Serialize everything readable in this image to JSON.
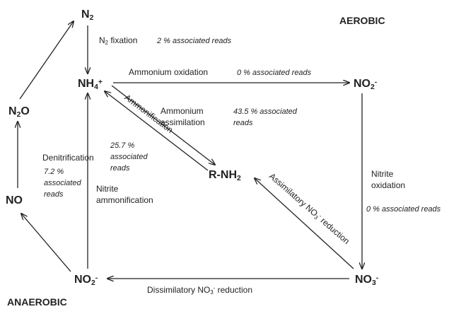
{
  "zones": {
    "aerobic": "AEROBIC",
    "anaerobic": "ANAEROBIC"
  },
  "nodes": [
    {
      "parts": [
        "N",
        {
          "text": "2",
          "pos": "sub"
        }
      ]
    },
    {
      "parts": [
        "NH",
        {
          "text": "4",
          "pos": "sub"
        },
        {
          "text": "+",
          "pos": "sup"
        }
      ]
    },
    {
      "parts": [
        "NO",
        {
          "text": "2",
          "pos": "sub"
        },
        {
          "text": "-",
          "pos": "sup"
        }
      ]
    },
    {
      "parts": [
        "N",
        {
          "text": "2",
          "pos": "sub"
        },
        "O"
      ]
    },
    {
      "parts": [
        "R-NH",
        {
          "text": "2",
          "pos": "sub"
        }
      ]
    },
    {
      "parts": [
        "NO"
      ]
    },
    {
      "parts": [
        "NO",
        {
          "text": "2",
          "pos": "sub"
        },
        {
          "text": "-",
          "pos": "sup"
        }
      ]
    },
    {
      "parts": [
        "NO",
        {
          "text": "3",
          "pos": "sub"
        },
        {
          "text": "-",
          "pos": "sup"
        }
      ]
    }
  ],
  "processes": [
    {
      "name": [
        {
          "parts": [
            "N",
            {
              "text": "2",
              "pos": "sub"
            },
            " fixation"
          ]
        }
      ],
      "reads": [
        "2 % associated reads"
      ]
    },
    {
      "name": [
        "Ammonium oxidation"
      ],
      "reads": [
        "0 % associated reads"
      ]
    },
    {
      "name": [
        "Ammonium",
        "assimilation"
      ],
      "reads": [
        "43.5 % associated",
        "reads"
      ]
    },
    {
      "name": [
        "Ammonification"
      ],
      "reads": [
        "25.7 %",
        "associated",
        "reads"
      ]
    },
    {
      "name": [
        "Denitrification"
      ],
      "reads": [
        "7.2 %",
        "associated",
        "reads"
      ]
    },
    {
      "name": [
        "Nitrite",
        "ammonification"
      ]
    },
    {
      "name": [
        "Nitrite",
        "oxidation"
      ],
      "reads": [
        "0 % associated reads"
      ]
    },
    {
      "name": [
        {
          "parts": [
            "Assimilatory NO",
            {
              "text": "3",
              "pos": "sub"
            },
            {
              "text": "-",
              "pos": "sup"
            },
            " reduction"
          ]
        }
      ]
    },
    {
      "name": [
        {
          "parts": [
            "Dissimilatory NO",
            {
              "text": "3",
              "pos": "sub"
            },
            {
              "text": "-",
              "pos": "sup"
            },
            " reduction"
          ]
        }
      ]
    }
  ]
}
